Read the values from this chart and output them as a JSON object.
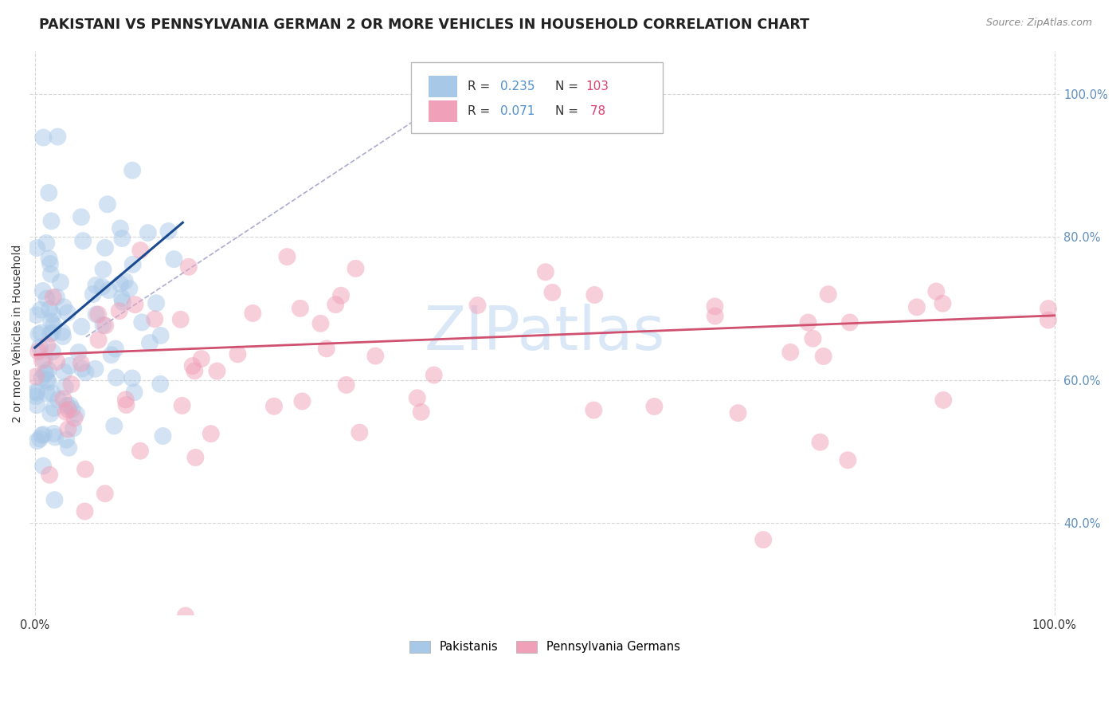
{
  "title": "PAKISTANI VS PENNSYLVANIA GERMAN 2 OR MORE VEHICLES IN HOUSEHOLD CORRELATION CHART",
  "source_text": "Source: ZipAtlas.com",
  "ylabel": "2 or more Vehicles in Household",
  "color_blue": "#A8C8E8",
  "color_pink": "#F0A0B8",
  "color_line_blue": "#1A4A90",
  "color_line_pink": "#D05070",
  "color_dash": "#9090C0",
  "background_color": "#FFFFFF",
  "grid_color": "#CCCCCC",
  "title_fontsize": 12.5,
  "label_fontsize": 10,
  "tick_fontsize": 10.5,
  "watermark_color": "#C0D8F0",
  "ytick_color": "#6090C0"
}
